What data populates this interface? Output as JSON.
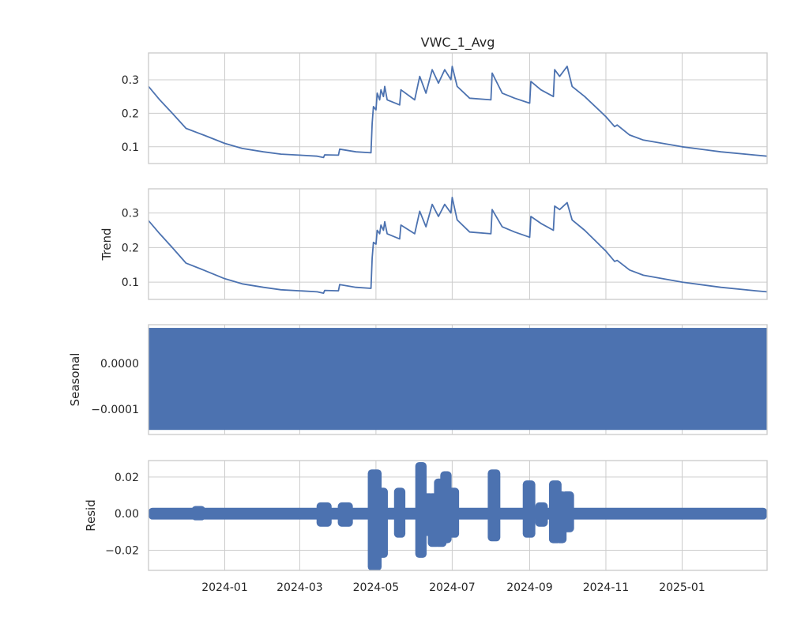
{
  "chart_data": [
    {
      "type": "line",
      "title": "VWC_1_Avg",
      "ylabel": "",
      "ylim": [
        0.05,
        0.38
      ],
      "yticks": [
        {
          "value": 0.1,
          "label": "0.1"
        },
        {
          "value": 0.2,
          "label": "0.2"
        },
        {
          "value": 0.3,
          "label": "0.3"
        }
      ],
      "x": [
        "2023-11-01",
        "2023-11-10",
        "2023-11-20",
        "2023-12-01",
        "2023-12-15",
        "2024-01-01",
        "2024-01-15",
        "2024-02-01",
        "2024-02-15",
        "2024-03-01",
        "2024-03-15",
        "2024-03-20",
        "2024-03-21",
        "2024-04-01",
        "2024-04-02",
        "2024-04-15",
        "2024-04-27",
        "2024-04-28",
        "2024-04-29",
        "2024-05-01",
        "2024-05-02",
        "2024-05-04",
        "2024-05-05",
        "2024-05-07",
        "2024-05-08",
        "2024-05-10",
        "2024-05-20",
        "2024-05-21",
        "2024-06-01",
        "2024-06-05",
        "2024-06-10",
        "2024-06-15",
        "2024-06-20",
        "2024-06-25",
        "2024-06-30",
        "2024-07-01",
        "2024-07-05",
        "2024-07-15",
        "2024-08-01",
        "2024-08-02",
        "2024-08-10",
        "2024-08-20",
        "2024-09-01",
        "2024-09-02",
        "2024-09-10",
        "2024-09-20",
        "2024-09-21",
        "2024-09-25",
        "2024-10-01",
        "2024-10-05",
        "2024-10-15",
        "2024-11-01",
        "2024-11-08",
        "2024-11-10",
        "2024-11-20",
        "2024-12-01",
        "2025-01-01",
        "2025-02-01",
        "2025-03-01",
        "2025-03-10"
      ],
      "series": [
        {
          "values": [
            0.28,
            0.24,
            0.2,
            0.155,
            0.135,
            0.11,
            0.095,
            0.085,
            0.078,
            0.075,
            0.072,
            0.068,
            0.076,
            0.075,
            0.093,
            0.085,
            0.082,
            0.17,
            0.22,
            0.21,
            0.26,
            0.24,
            0.27,
            0.25,
            0.28,
            0.24,
            0.225,
            0.27,
            0.24,
            0.31,
            0.26,
            0.33,
            0.29,
            0.33,
            0.3,
            0.34,
            0.28,
            0.245,
            0.24,
            0.32,
            0.26,
            0.245,
            0.23,
            0.295,
            0.27,
            0.25,
            0.33,
            0.31,
            0.34,
            0.28,
            0.25,
            0.19,
            0.16,
            0.165,
            0.135,
            0.12,
            0.1,
            0.085,
            0.075,
            0.072
          ]
        }
      ]
    },
    {
      "type": "line",
      "title": "",
      "ylabel": "Trend",
      "ylim": [
        0.05,
        0.37
      ],
      "yticks": [
        {
          "value": 0.1,
          "label": "0.1"
        },
        {
          "value": 0.2,
          "label": "0.2"
        },
        {
          "value": 0.3,
          "label": "0.3"
        }
      ],
      "x": [
        "2023-11-01",
        "2023-11-10",
        "2023-11-20",
        "2023-12-01",
        "2023-12-15",
        "2024-01-01",
        "2024-01-15",
        "2024-02-01",
        "2024-02-15",
        "2024-03-01",
        "2024-03-15",
        "2024-03-20",
        "2024-03-21",
        "2024-04-01",
        "2024-04-02",
        "2024-04-15",
        "2024-04-27",
        "2024-04-28",
        "2024-04-29",
        "2024-05-01",
        "2024-05-02",
        "2024-05-04",
        "2024-05-05",
        "2024-05-07",
        "2024-05-08",
        "2024-05-10",
        "2024-05-20",
        "2024-05-21",
        "2024-06-01",
        "2024-06-05",
        "2024-06-10",
        "2024-06-15",
        "2024-06-20",
        "2024-06-25",
        "2024-06-30",
        "2024-07-01",
        "2024-07-05",
        "2024-07-15",
        "2024-08-01",
        "2024-08-02",
        "2024-08-10",
        "2024-08-20",
        "2024-09-01",
        "2024-09-02",
        "2024-09-10",
        "2024-09-20",
        "2024-09-21",
        "2024-09-25",
        "2024-10-01",
        "2024-10-05",
        "2024-10-15",
        "2024-11-01",
        "2024-11-08",
        "2024-11-10",
        "2024-11-20",
        "2024-12-01",
        "2025-01-01",
        "2025-02-01",
        "2025-03-01",
        "2025-03-10"
      ],
      "series": [
        {
          "values": [
            0.278,
            0.24,
            0.2,
            0.155,
            0.135,
            0.11,
            0.095,
            0.085,
            0.078,
            0.075,
            0.072,
            0.068,
            0.076,
            0.075,
            0.093,
            0.085,
            0.082,
            0.17,
            0.215,
            0.21,
            0.25,
            0.24,
            0.265,
            0.25,
            0.275,
            0.24,
            0.225,
            0.265,
            0.24,
            0.305,
            0.26,
            0.325,
            0.29,
            0.325,
            0.3,
            0.345,
            0.28,
            0.245,
            0.24,
            0.31,
            0.26,
            0.245,
            0.23,
            0.29,
            0.27,
            0.25,
            0.32,
            0.31,
            0.33,
            0.28,
            0.25,
            0.19,
            0.16,
            0.163,
            0.135,
            0.12,
            0.1,
            0.085,
            0.075,
            0.072
          ]
        }
      ]
    },
    {
      "type": "area",
      "title": "",
      "ylabel": "Seasonal",
      "ylim": [
        -0.000155,
        8.5e-05
      ],
      "yticks": [
        {
          "value": 0.0,
          "label": "0.0000"
        },
        {
          "value": -0.0001,
          "label": "−0.0001"
        }
      ],
      "x": [
        "2023-11-01",
        "2025-03-10"
      ],
      "band": {
        "min": -0.000145,
        "max": 7.8e-05
      }
    },
    {
      "type": "scatter",
      "title": "",
      "ylabel": "Resid",
      "ylim": [
        -0.031,
        0.029
      ],
      "yticks": [
        {
          "value": 0.02,
          "label": "0.02"
        },
        {
          "value": 0.0,
          "label": "0.00"
        },
        {
          "value": -0.02,
          "label": "−0.02"
        }
      ],
      "x": [
        "2023-11-01",
        "2025-03-10"
      ],
      "base_band": {
        "min": -0.0015,
        "max": 0.0015
      },
      "bursts": [
        {
          "start": "2023-12-08",
          "end": "2023-12-14",
          "min": -0.0015,
          "max": 0.002
        },
        {
          "start": "2024-03-17",
          "end": "2024-03-24",
          "min": -0.005,
          "max": 0.004
        },
        {
          "start": "2024-04-03",
          "end": "2024-04-10",
          "min": -0.005,
          "max": 0.004
        },
        {
          "start": "2024-04-27",
          "end": "2024-05-03",
          "min": -0.029,
          "max": 0.022
        },
        {
          "start": "2024-05-03",
          "end": "2024-05-08",
          "min": -0.022,
          "max": 0.012
        },
        {
          "start": "2024-05-18",
          "end": "2024-05-22",
          "min": -0.011,
          "max": 0.012
        },
        {
          "start": "2024-06-04",
          "end": "2024-06-08",
          "min": -0.022,
          "max": 0.026
        },
        {
          "start": "2024-06-09",
          "end": "2024-06-14",
          "min": -0.01,
          "max": 0.009
        },
        {
          "start": "2024-06-14",
          "end": "2024-06-19",
          "min": -0.016,
          "max": 0.009
        },
        {
          "start": "2024-06-19",
          "end": "2024-06-24",
          "min": -0.016,
          "max": 0.017
        },
        {
          "start": "2024-06-24",
          "end": "2024-06-28",
          "min": -0.014,
          "max": 0.021
        },
        {
          "start": "2024-06-28",
          "end": "2024-07-04",
          "min": -0.011,
          "max": 0.012
        },
        {
          "start": "2024-08-01",
          "end": "2024-08-06",
          "min": -0.013,
          "max": 0.022
        },
        {
          "start": "2024-08-29",
          "end": "2024-09-03",
          "min": -0.011,
          "max": 0.016
        },
        {
          "start": "2024-09-08",
          "end": "2024-09-13",
          "min": -0.005,
          "max": 0.004
        },
        {
          "start": "2024-09-19",
          "end": "2024-09-24",
          "min": -0.014,
          "max": 0.016
        },
        {
          "start": "2024-09-24",
          "end": "2024-09-28",
          "min": -0.014,
          "max": 0.01
        },
        {
          "start": "2024-09-29",
          "end": "2024-10-04",
          "min": -0.008,
          "max": 0.01
        }
      ]
    }
  ],
  "x_axis": {
    "xlim": [
      "2023-11-01",
      "2025-03-10"
    ],
    "ticks": [
      {
        "date": "2024-01-01",
        "label": "2024-01"
      },
      {
        "date": "2024-03-01",
        "label": "2024-03"
      },
      {
        "date": "2024-05-01",
        "label": "2024-05"
      },
      {
        "date": "2024-07-01",
        "label": "2024-07"
      },
      {
        "date": "2024-09-01",
        "label": "2024-09"
      },
      {
        "date": "2024-11-01",
        "label": "2024-11"
      },
      {
        "date": "2025-01-01",
        "label": "2025-01"
      }
    ]
  },
  "colors": {
    "series": "#4c72b0",
    "grid": "#cccccc",
    "frame": "#cccccc",
    "text": "#262626"
  }
}
